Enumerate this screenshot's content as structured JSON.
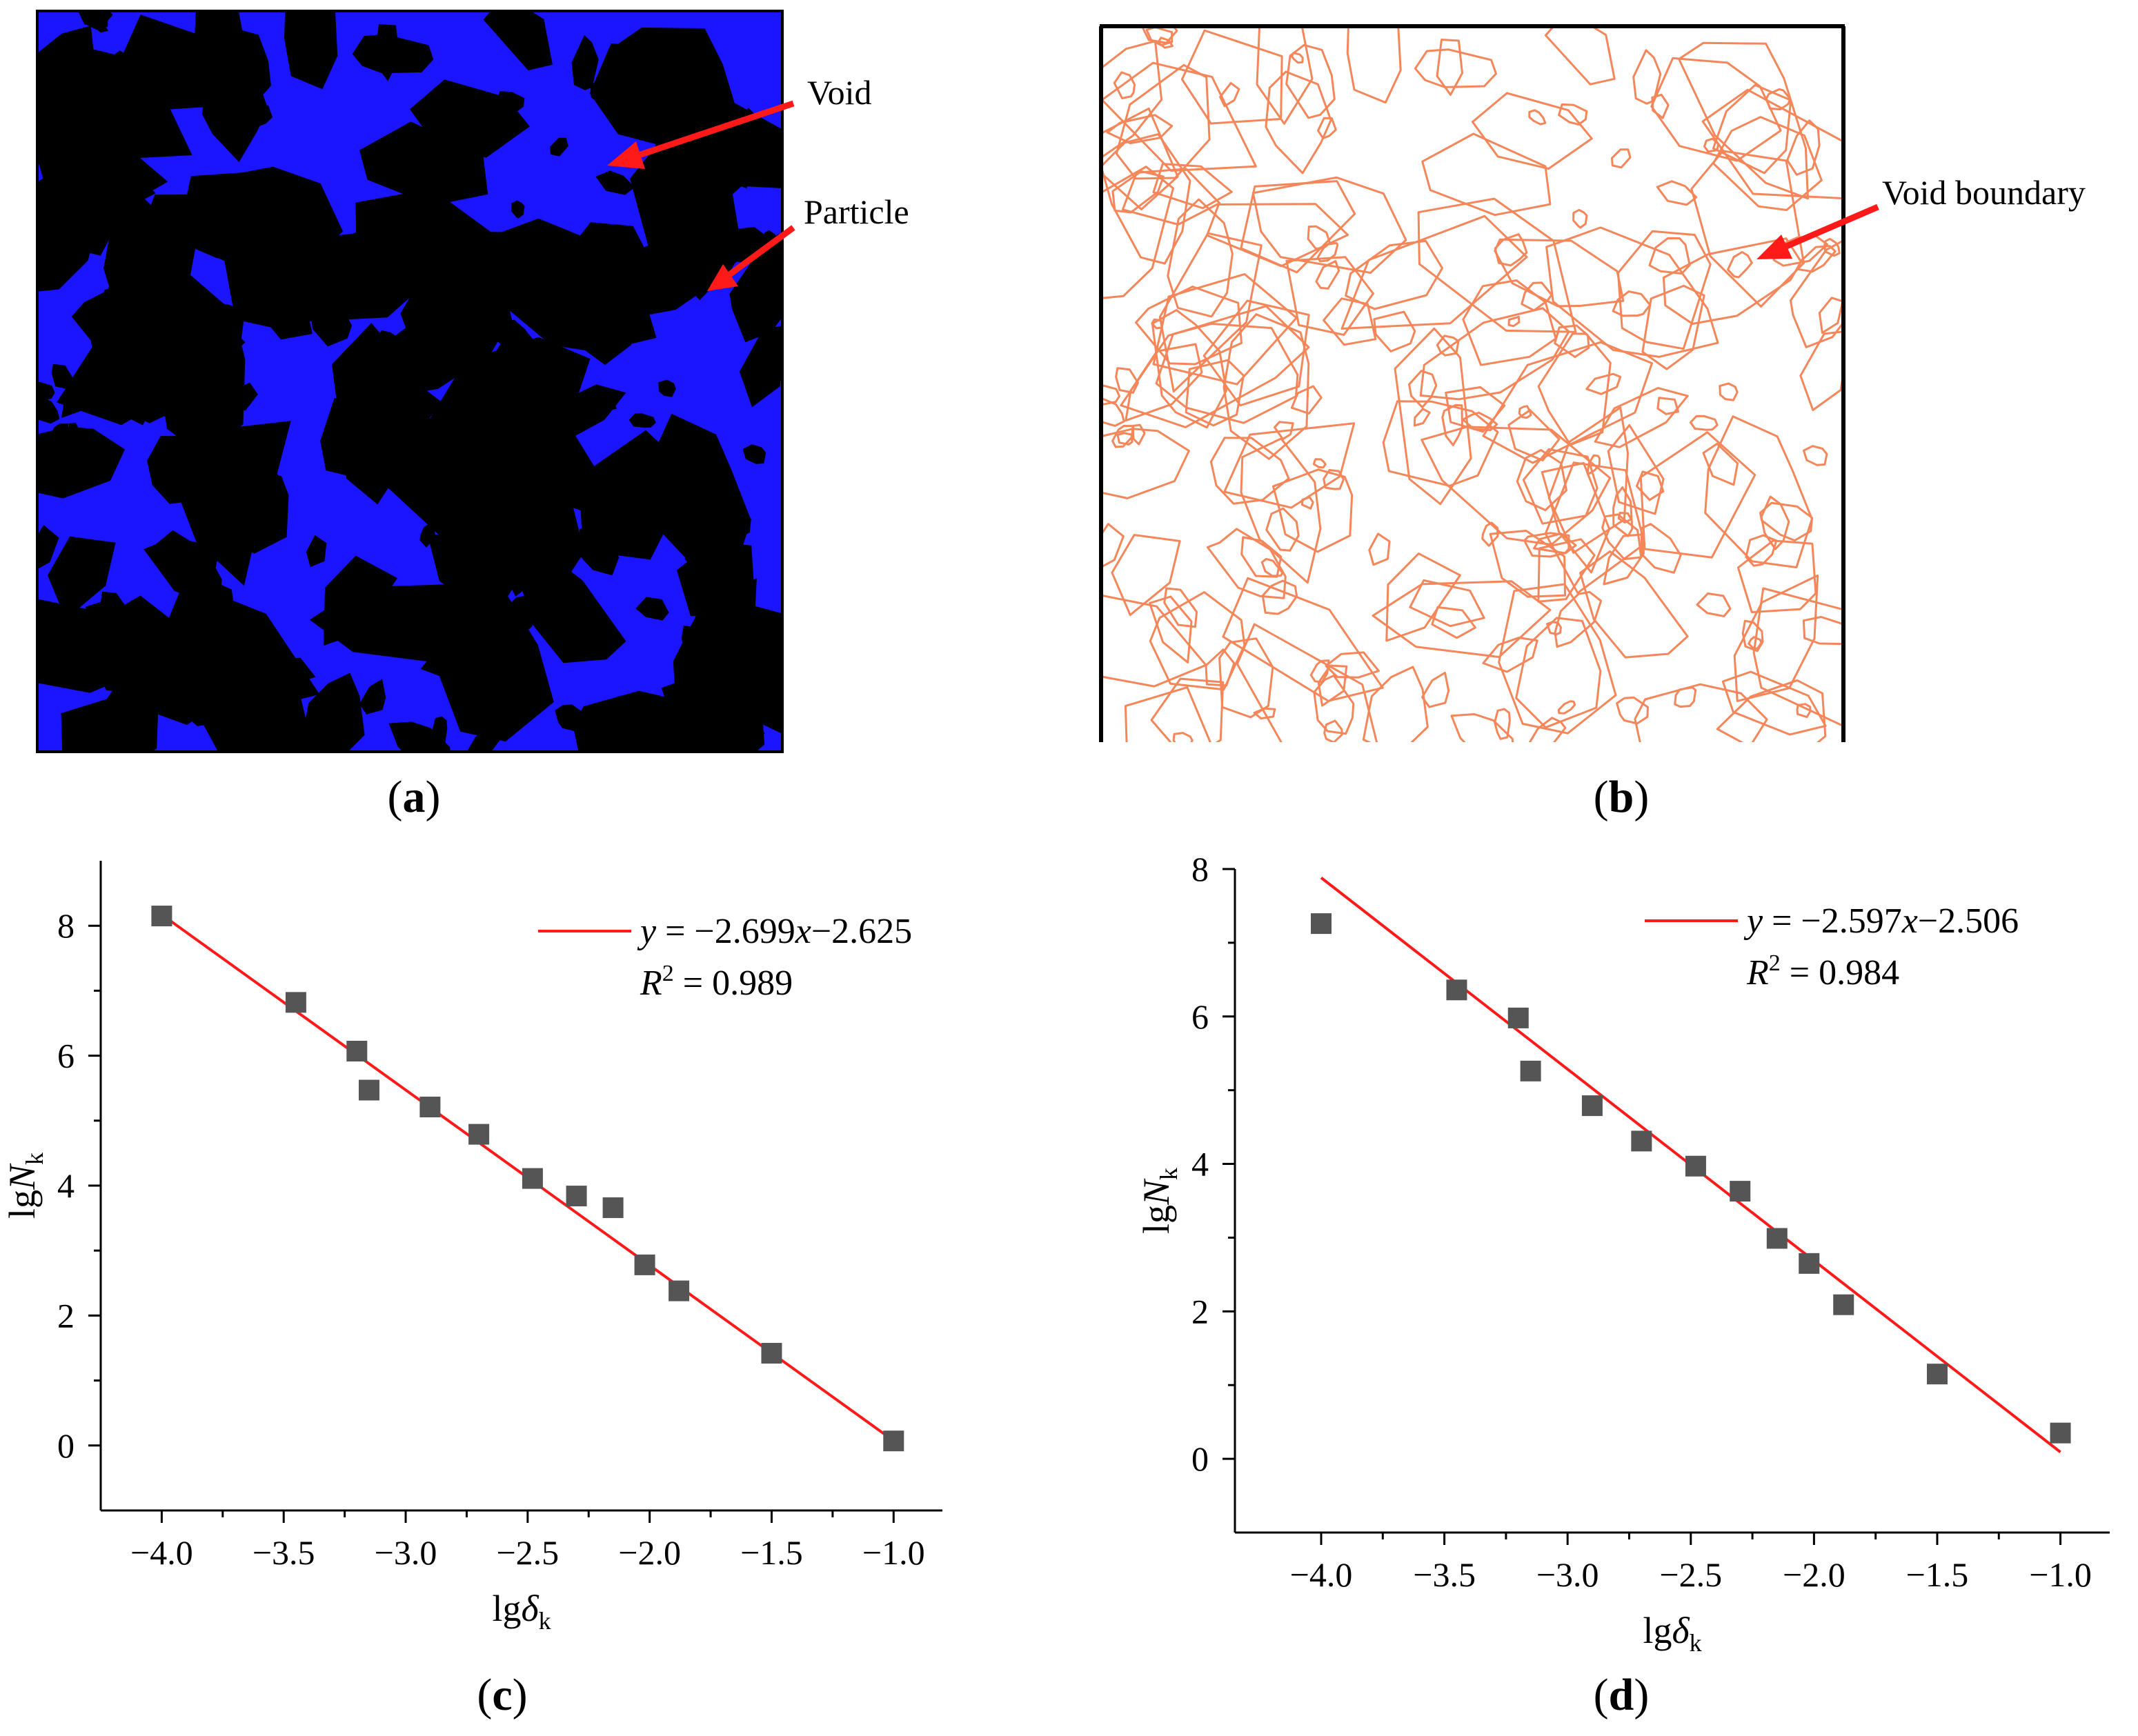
{
  "panels": {
    "a": {
      "caption": "a",
      "annotations": {
        "void": "Void",
        "particle": "Particle"
      },
      "colors": {
        "void": "#1a14ff",
        "particle": "#000000",
        "arrow": "#ff1a1a"
      }
    },
    "b": {
      "caption": "b",
      "annotations": {
        "boundary": "Void boundary"
      },
      "colors": {
        "boundary": "#f4865a",
        "arrow": "#ff1a1a"
      }
    },
    "c": {
      "caption": "c"
    },
    "d": {
      "caption": "d"
    }
  },
  "chart_data": [
    {
      "id": "c",
      "type": "scatter",
      "xlabel_main": "lg",
      "xlabel_sym": "δ",
      "xlabel_sub": "k",
      "ylabel_main": "lg",
      "ylabel_sym": "N",
      "ylabel_sub": "k",
      "xlim": [
        -4.25,
        -0.8
      ],
      "ylim": [
        -1.0,
        9.0
      ],
      "xticks": [
        -4.0,
        -3.5,
        -3.0,
        -2.5,
        -2.0,
        -1.5,
        -1.0
      ],
      "xtick_labels": [
        "−4.0",
        "−3.5",
        "−3.0",
        "−2.5",
        "−2.0",
        "−1.5",
        "−1.0"
      ],
      "yticks": [
        0,
        2,
        4,
        6,
        8
      ],
      "ytick_labels": [
        "0",
        "2",
        "4",
        "6",
        "8"
      ],
      "grid": false,
      "legend": "top-right",
      "fit": {
        "slope": -2.699,
        "intercept": -2.625,
        "x_range": [
          -4.0,
          -1.0
        ],
        "color": "#ff1a1a"
      },
      "equation": {
        "y": "y",
        "eq1": " = −2.699",
        "x": "x",
        "eq2": "−2.625"
      },
      "r2": {
        "r": "R",
        "sup": "2",
        "value": " = 0.989"
      },
      "marker_color": "#555555",
      "points": [
        {
          "x": -4.0,
          "y": 8.15
        },
        {
          "x": -3.45,
          "y": 6.82
        },
        {
          "x": -3.2,
          "y": 6.07
        },
        {
          "x": -3.15,
          "y": 5.47
        },
        {
          "x": -2.9,
          "y": 5.21
        },
        {
          "x": -2.7,
          "y": 4.79
        },
        {
          "x": -2.48,
          "y": 4.11
        },
        {
          "x": -2.3,
          "y": 3.84
        },
        {
          "x": -2.15,
          "y": 3.66
        },
        {
          "x": -2.02,
          "y": 2.78
        },
        {
          "x": -1.88,
          "y": 2.38
        },
        {
          "x": -1.5,
          "y": 1.42
        },
        {
          "x": -1.0,
          "y": 0.07
        }
      ]
    },
    {
      "id": "d",
      "type": "scatter",
      "xlabel_main": "lg",
      "xlabel_sym": "δ",
      "xlabel_sub": "k",
      "ylabel_main": "lg",
      "ylabel_sym": "N",
      "ylabel_sub": "k",
      "xlim": [
        -4.35,
        -0.8
      ],
      "ylim": [
        -1.0,
        8.0
      ],
      "xticks": [
        -4.0,
        -3.5,
        -3.0,
        -2.5,
        -2.0,
        -1.5,
        -1.0
      ],
      "xtick_labels": [
        "−4.0",
        "−3.5",
        "−3.0",
        "−2.5",
        "−2.0",
        "−1.5",
        "−1.0"
      ],
      "yticks": [
        0,
        2,
        4,
        6,
        8
      ],
      "ytick_labels": [
        "0",
        "2",
        "4",
        "6",
        "8"
      ],
      "grid": false,
      "legend": "top-right",
      "fit": {
        "slope": -2.597,
        "intercept": -2.506,
        "x_range": [
          -4.0,
          -1.0
        ],
        "color": "#ff1a1a"
      },
      "equation": {
        "y": "y",
        "eq1": " = −2.597",
        "x": "x",
        "eq2": "−2.506"
      },
      "r2": {
        "r": "R",
        "sup": "2",
        "value": " = 0.984"
      },
      "marker_color": "#555555",
      "points": [
        {
          "x": -4.0,
          "y": 7.26
        },
        {
          "x": -3.45,
          "y": 6.36
        },
        {
          "x": -3.2,
          "y": 5.98
        },
        {
          "x": -3.15,
          "y": 5.26
        },
        {
          "x": -2.9,
          "y": 4.79
        },
        {
          "x": -2.7,
          "y": 4.31
        },
        {
          "x": -2.48,
          "y": 3.97
        },
        {
          "x": -2.3,
          "y": 3.63
        },
        {
          "x": -2.15,
          "y": 2.99
        },
        {
          "x": -2.02,
          "y": 2.65
        },
        {
          "x": -1.88,
          "y": 2.09
        },
        {
          "x": -1.5,
          "y": 1.15
        },
        {
          "x": -1.0,
          "y": 0.35
        }
      ]
    }
  ]
}
